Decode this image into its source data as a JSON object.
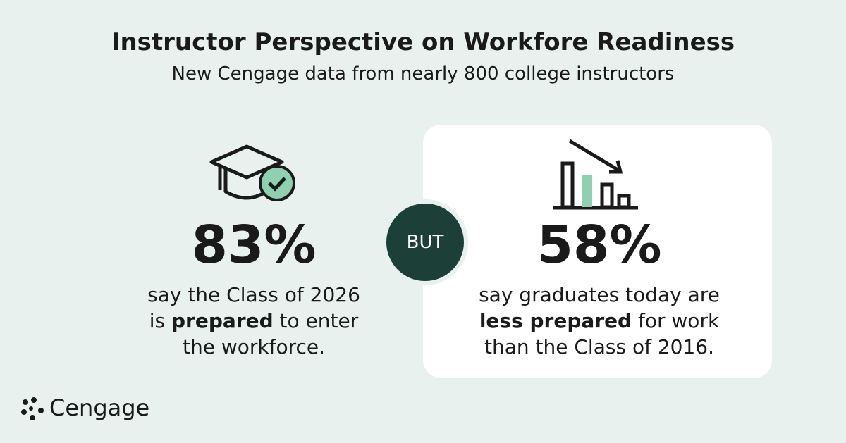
{
  "header": {
    "title": "Instructor Perspective on Workfore Readiness",
    "subtitle": "New Cengage data from nearly 800 college instructors"
  },
  "left": {
    "stat": "83%",
    "lines": [
      [
        "say the Class of 2026"
      ],
      [
        "is ",
        "prepared",
        " to enter"
      ],
      [
        "the workforce."
      ]
    ]
  },
  "connector": "BUT",
  "right": {
    "stat": "58%",
    "lines": [
      [
        "say graduates today are"
      ],
      [
        "less prepared",
        " for work"
      ],
      [
        "than the Class of 2016."
      ]
    ]
  },
  "footer": {
    "logo": "Cengage"
  }
}
